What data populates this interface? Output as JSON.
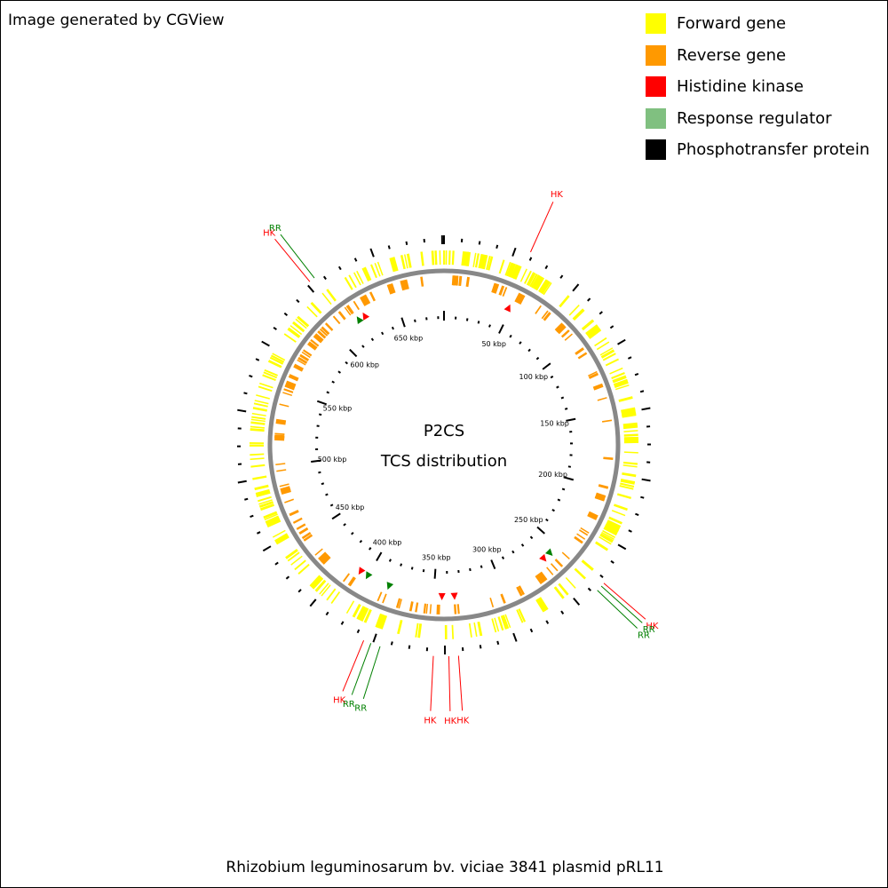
{
  "credit": "Image generated by CGView",
  "footer": "Rhizobium leguminosarum bv. viciae 3841 plasmid pRL11",
  "center": {
    "line1": "P2CS",
    "line2": "TCS distribution"
  },
  "legend": [
    {
      "label": "Forward gene",
      "color": "#ffff00"
    },
    {
      "label": "Reverse gene",
      "color": "#ff9900"
    },
    {
      "label": "Histidine kinase",
      "color": "#ff0000"
    },
    {
      "label": "Response regulator",
      "color": "#80c080"
    },
    {
      "label": "Phosphotransfer protein",
      "color": "#000000"
    }
  ],
  "map": {
    "sequence_length_kbp": 685,
    "kbp_labels": [
      {
        "kbp": 50,
        "text": "50 kbp"
      },
      {
        "kbp": 100,
        "text": "100 kbp"
      },
      {
        "kbp": 150,
        "text": "150 kbp"
      },
      {
        "kbp": 200,
        "text": "200 kbp"
      },
      {
        "kbp": 250,
        "text": "250 kbp"
      },
      {
        "kbp": 300,
        "text": "300 kbp"
      },
      {
        "kbp": 350,
        "text": "350 kbp"
      },
      {
        "kbp": 400,
        "text": "400 kbp"
      },
      {
        "kbp": 450,
        "text": "450 kbp"
      },
      {
        "kbp": 500,
        "text": "500 kbp"
      },
      {
        "kbp": 550,
        "text": "550 kbp"
      },
      {
        "kbp": 600,
        "text": "600 kbp"
      },
      {
        "kbp": 650,
        "text": "650 kbp"
      }
    ],
    "markers": [
      {
        "type": "HK",
        "kbp": 48,
        "color": "#ff0000"
      },
      {
        "type": "RR",
        "kbp": 258,
        "color": "#008000"
      },
      {
        "type": "HK",
        "kbp": 264,
        "color": "#ff0000"
      },
      {
        "type": "HK",
        "kbp": 335,
        "color": "#ff0000"
      },
      {
        "type": "HK",
        "kbp": 344,
        "color": "#ff0000"
      },
      {
        "type": "RR",
        "kbp": 383,
        "color": "#008000"
      },
      {
        "type": "RR",
        "kbp": 400,
        "color": "#008000"
      },
      {
        "type": "HK",
        "kbp": 406,
        "color": "#ff0000"
      },
      {
        "type": "RR",
        "kbp": 620,
        "color": "#008000"
      },
      {
        "type": "HK",
        "kbp": 625,
        "color": "#ff0000"
      }
    ],
    "callouts": [
      {
        "text": "HK",
        "color": "#ff0000",
        "kbp": 46
      },
      {
        "text": "HK",
        "color": "#ff0000",
        "kbp": 249
      },
      {
        "text": "RR",
        "color": "#008000",
        "kbp": 251
      },
      {
        "text": "RR",
        "color": "#008000",
        "kbp": 254
      },
      {
        "text": "HK",
        "color": "#ff0000",
        "kbp": 335
      },
      {
        "text": "HK",
        "color": "#ff0000",
        "kbp": 340
      },
      {
        "text": "HK",
        "color": "#ff0000",
        "kbp": 348
      },
      {
        "text": "RR",
        "color": "#008000",
        "kbp": 376
      },
      {
        "text": "RR",
        "color": "#008000",
        "kbp": 381
      },
      {
        "text": "HK",
        "color": "#ff0000",
        "kbp": 385
      },
      {
        "text": "HK",
        "color": "#ff0000",
        "kbp": 610
      },
      {
        "text": "RR",
        "color": "#008000",
        "kbp": 613
      }
    ]
  }
}
